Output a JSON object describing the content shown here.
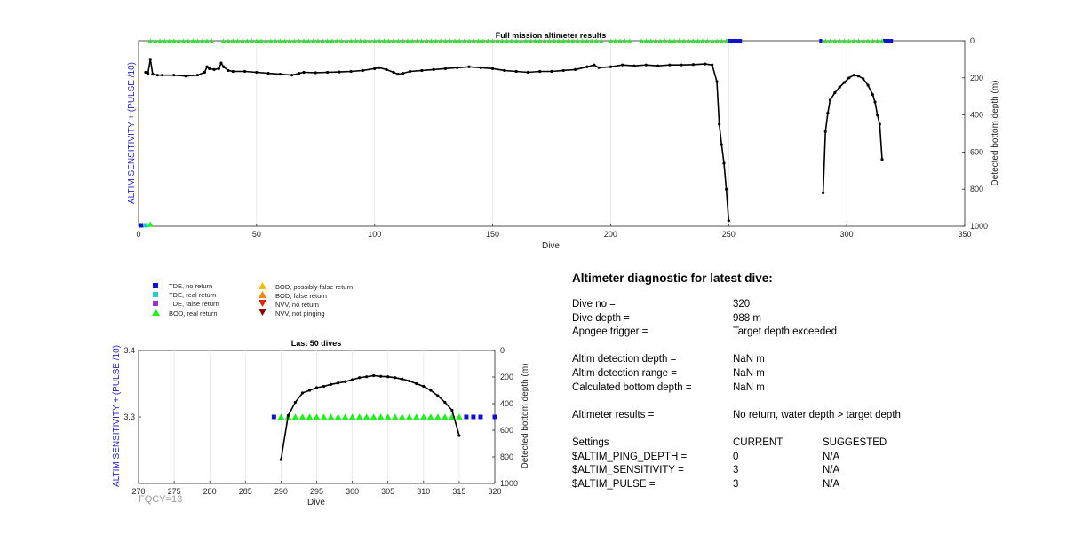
{
  "chart_data": [
    {
      "id": "full_mission",
      "type": "line",
      "title": "Full mission altimeter results",
      "xlabel": "Dive",
      "ylabel_left": "ALTIM SENSITIVITY + (PULSE /10)",
      "ylabel_right": "Detected bottom depth (m)",
      "xlim": [
        0,
        350
      ],
      "xticks": [
        "0",
        "50",
        "100",
        "150",
        "200",
        "250",
        "300",
        "350"
      ],
      "ylim_right": [
        0,
        1000
      ],
      "yticks_right": [
        "0",
        "200",
        "400",
        "600",
        "800",
        "1000"
      ],
      "grid": "vertical",
      "series": [
        {
          "name": "Detected bottom depth",
          "color": "#000000",
          "segments": [
            [
              [
                3,
                170
              ],
              [
                4,
                175
              ],
              [
                5,
                100
              ],
              [
                6,
                180
              ],
              [
                8,
                185
              ],
              [
                10,
                185
              ],
              [
                15,
                185
              ],
              [
                20,
                190
              ],
              [
                25,
                185
              ],
              [
                28,
                170
              ],
              [
                29,
                140
              ],
              [
                30,
                150
              ],
              [
                32,
                155
              ],
              [
                34,
                150
              ],
              [
                35,
                120
              ],
              [
                36,
                140
              ],
              [
                38,
                160
              ],
              [
                40,
                165
              ],
              [
                45,
                165
              ],
              [
                50,
                170
              ],
              [
                55,
                175
              ],
              [
                60,
                180
              ],
              [
                65,
                185
              ],
              [
                68,
                175
              ],
              [
                70,
                170
              ],
              [
                75,
                172
              ],
              [
                80,
                170
              ],
              [
                85,
                168
              ],
              [
                90,
                165
              ],
              [
                95,
                160
              ],
              [
                100,
                150
              ],
              [
                102,
                145
              ],
              [
                105,
                155
              ],
              [
                108,
                170
              ],
              [
                110,
                180
              ],
              [
                112,
                175
              ],
              [
                115,
                165
              ],
              [
                120,
                160
              ],
              [
                125,
                155
              ],
              [
                130,
                150
              ],
              [
                135,
                145
              ],
              [
                140,
                140
              ],
              [
                145,
                145
              ],
              [
                150,
                150
              ],
              [
                155,
                160
              ],
              [
                160,
                165
              ],
              [
                165,
                170
              ],
              [
                170,
                165
              ],
              [
                175,
                165
              ],
              [
                180,
                160
              ],
              [
                185,
                155
              ],
              [
                190,
                140
              ],
              [
                193,
                130
              ],
              [
                195,
                145
              ],
              [
                200,
                140
              ],
              [
                205,
                130
              ],
              [
                210,
                135
              ],
              [
                215,
                130
              ],
              [
                220,
                135
              ],
              [
                225,
                130
              ],
              [
                230,
                130
              ],
              [
                235,
                128
              ],
              [
                240,
                125
              ],
              [
                243,
                130
              ],
              [
                245,
                220
              ],
              [
                246,
                450
              ],
              [
                247,
                560
              ],
              [
                248,
                660
              ],
              [
                249,
                800
              ],
              [
                250,
                970
              ]
            ],
            [
              [
                290,
                820
              ],
              [
                291,
                490
              ],
              [
                292,
                390
              ],
              [
                293,
                320
              ],
              [
                295,
                280
              ],
              [
                297,
                250
              ],
              [
                299,
                225
              ],
              [
                301,
                200
              ],
              [
                303,
                185
              ],
              [
                305,
                190
              ],
              [
                307,
                205
              ],
              [
                309,
                240
              ],
              [
                311,
                290
              ],
              [
                312,
                330
              ],
              [
                313,
                400
              ],
              [
                314,
                450
              ],
              [
                315,
                640
              ]
            ]
          ]
        }
      ],
      "markers": {
        "bod_real_return_x": [
          5,
          7,
          9,
          11,
          13,
          15,
          17,
          19,
          21,
          23,
          25,
          27,
          29,
          31,
          36,
          38,
          40,
          42,
          44,
          46,
          48,
          50,
          52,
          54,
          56,
          58,
          60,
          62,
          64,
          66,
          68,
          70,
          72,
          74,
          76,
          78,
          80,
          82,
          84,
          86,
          88,
          90,
          92,
          94,
          96,
          98,
          100,
          102,
          104,
          106,
          108,
          110,
          112,
          114,
          116,
          118,
          120,
          122,
          124,
          126,
          128,
          130,
          132,
          134,
          136,
          138,
          140,
          142,
          144,
          146,
          148,
          150,
          152,
          154,
          156,
          158,
          160,
          162,
          164,
          166,
          168,
          170,
          172,
          174,
          176,
          178,
          180,
          182,
          184,
          186,
          188,
          190,
          192,
          194,
          196,
          200,
          202,
          204,
          206,
          208,
          213,
          215,
          217,
          219,
          221,
          223,
          225,
          227,
          229,
          231,
          233,
          235,
          237,
          239,
          241,
          243,
          245,
          247,
          249,
          291,
          293,
          295,
          297,
          299,
          301,
          303,
          305,
          307,
          309,
          311,
          313,
          315
        ],
        "tde_no_return_x": [
          250,
          251,
          252,
          253,
          254,
          255,
          289,
          316,
          317,
          318,
          319
        ],
        "bottom_row": {
          "tde_no_return_x": [
            1
          ],
          "tde_real_return_x": [
            3
          ],
          "bod_real_return_x": [
            5
          ]
        }
      },
      "colors": {
        "bod_real_return": "#22ee22",
        "tde_no_return": "#1010d0",
        "tde_real_return": "#22cccc"
      }
    },
    {
      "id": "last_50",
      "type": "line",
      "title": "Last 50 dives",
      "xlabel": "Dive",
      "ylabel_left": "ALTIM SENSITIVITY + (PULSE /10)",
      "ylabel_right": "Detected bottom depth (m)",
      "xlim": [
        270,
        320
      ],
      "xticks": [
        "270",
        "275",
        "280",
        "285",
        "290",
        "295",
        "300",
        "305",
        "310",
        "315",
        "320"
      ],
      "ylim_left": [
        3.2,
        3.4
      ],
      "yticks_left": [
        "3.4",
        "3.3"
      ],
      "ylim_right": [
        0,
        1000
      ],
      "yticks_right": [
        "0",
        "200",
        "400",
        "600",
        "800",
        "1000"
      ],
      "grid": "vertical",
      "depth": [
        [
          290,
          820
        ],
        [
          291,
          490
        ],
        [
          292,
          390
        ],
        [
          293,
          320
        ],
        [
          294,
          300
        ],
        [
          295,
          280
        ],
        [
          296,
          270
        ],
        [
          297,
          255
        ],
        [
          298,
          245
        ],
        [
          299,
          235
        ],
        [
          300,
          220
        ],
        [
          301,
          205
        ],
        [
          302,
          198
        ],
        [
          303,
          190
        ],
        [
          304,
          195
        ],
        [
          305,
          198
        ],
        [
          306,
          205
        ],
        [
          307,
          215
        ],
        [
          308,
          230
        ],
        [
          309,
          250
        ],
        [
          310,
          270
        ],
        [
          311,
          300
        ],
        [
          312,
          340
        ],
        [
          313,
          390
        ],
        [
          314,
          450
        ],
        [
          315,
          640
        ]
      ],
      "bod_real_return": {
        "x": [
          290,
          291,
          292,
          293,
          294,
          295,
          296,
          297,
          298,
          299,
          300,
          301,
          302,
          303,
          304,
          305,
          306,
          307,
          308,
          309,
          310,
          311,
          312,
          313,
          314,
          315
        ],
        "y": 3.3
      },
      "tde_no_return": {
        "x": [
          289,
          316,
          317,
          318,
          320
        ],
        "y": 3.3
      }
    }
  ],
  "legend": [
    {
      "symbol": "square",
      "color": "#1010d0",
      "label": "TDE, no return"
    },
    {
      "symbol": "square",
      "color": "#22cccc",
      "label": "TDE, real return"
    },
    {
      "symbol": "square",
      "color": "#9933cc",
      "label": "TDE, false return"
    },
    {
      "symbol": "triangle-up",
      "color": "#22ee22",
      "label": "BOD, real return"
    },
    {
      "symbol": "triangle-up",
      "color": "#f0c000",
      "label": "BOD, possibly false return"
    },
    {
      "symbol": "triangle-up",
      "color": "#ee8800",
      "label": "BOD, false return"
    },
    {
      "symbol": "triangle-down",
      "color": "#dd2200",
      "label": "NVV, no return"
    },
    {
      "symbol": "triangle-down",
      "color": "#880000",
      "label": "NVV, not pinging"
    }
  ],
  "footer": "FQCY=13",
  "diagnostic": {
    "title": "Altimeter diagnostic for latest dive:",
    "dive_no_label": "Dive no =",
    "dive_no": "320",
    "dive_depth_label": "Dive depth =",
    "dive_depth": "988 m",
    "apogee_label": "Apogee trigger =",
    "apogee": "Target depth exceeded",
    "det_depth_label": "Altim detection depth =",
    "det_depth": "NaN m",
    "det_range_label": "Altim detection range =",
    "det_range": "NaN m",
    "calc_depth_label": "Calculated bottom depth =",
    "calc_depth": "NaN m",
    "results_label": "Altimeter results =",
    "results": "No return, water depth > target depth",
    "settings_label": "Settings",
    "current_label": "CURRENT",
    "suggested_label": "SUGGESTED",
    "settings": [
      {
        "name": "$ALTIM_PING_DEPTH =",
        "current": "0",
        "suggested": "N/A"
      },
      {
        "name": "$ALTIM_SENSITIVITY =",
        "current": "3",
        "suggested": "N/A"
      },
      {
        "name": "$ALTIM_PULSE =",
        "current": "3",
        "suggested": "N/A"
      }
    ]
  }
}
